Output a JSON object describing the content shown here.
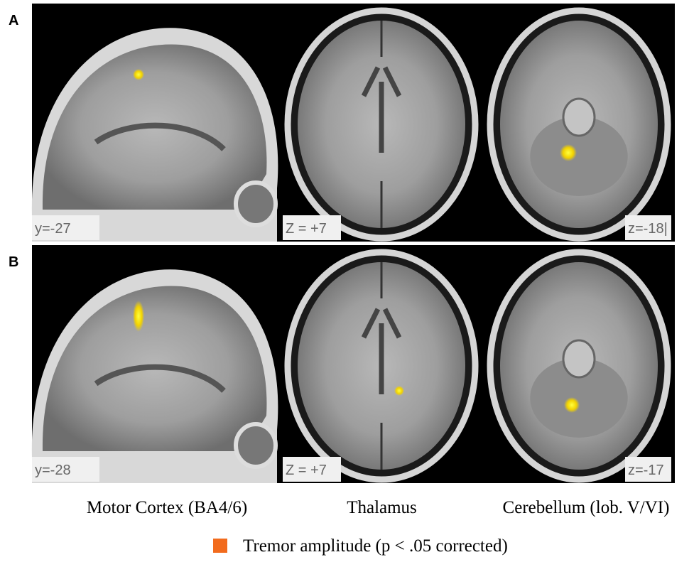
{
  "panels": [
    {
      "label": "A",
      "slices": [
        "y=-27",
        "Z = +7",
        "z=-18|"
      ]
    },
    {
      "label": "B",
      "slices": [
        "y=-28",
        "Z = +7",
        "z=-17"
      ]
    }
  ],
  "columns": [
    "Motor Cortex (BA4/6)",
    "Thalamus",
    "Cerebellum (lob. V/VI)"
  ],
  "legend": {
    "label": "Tremor amplitude (p < .05 corrected)",
    "color": "#f26b1d"
  }
}
